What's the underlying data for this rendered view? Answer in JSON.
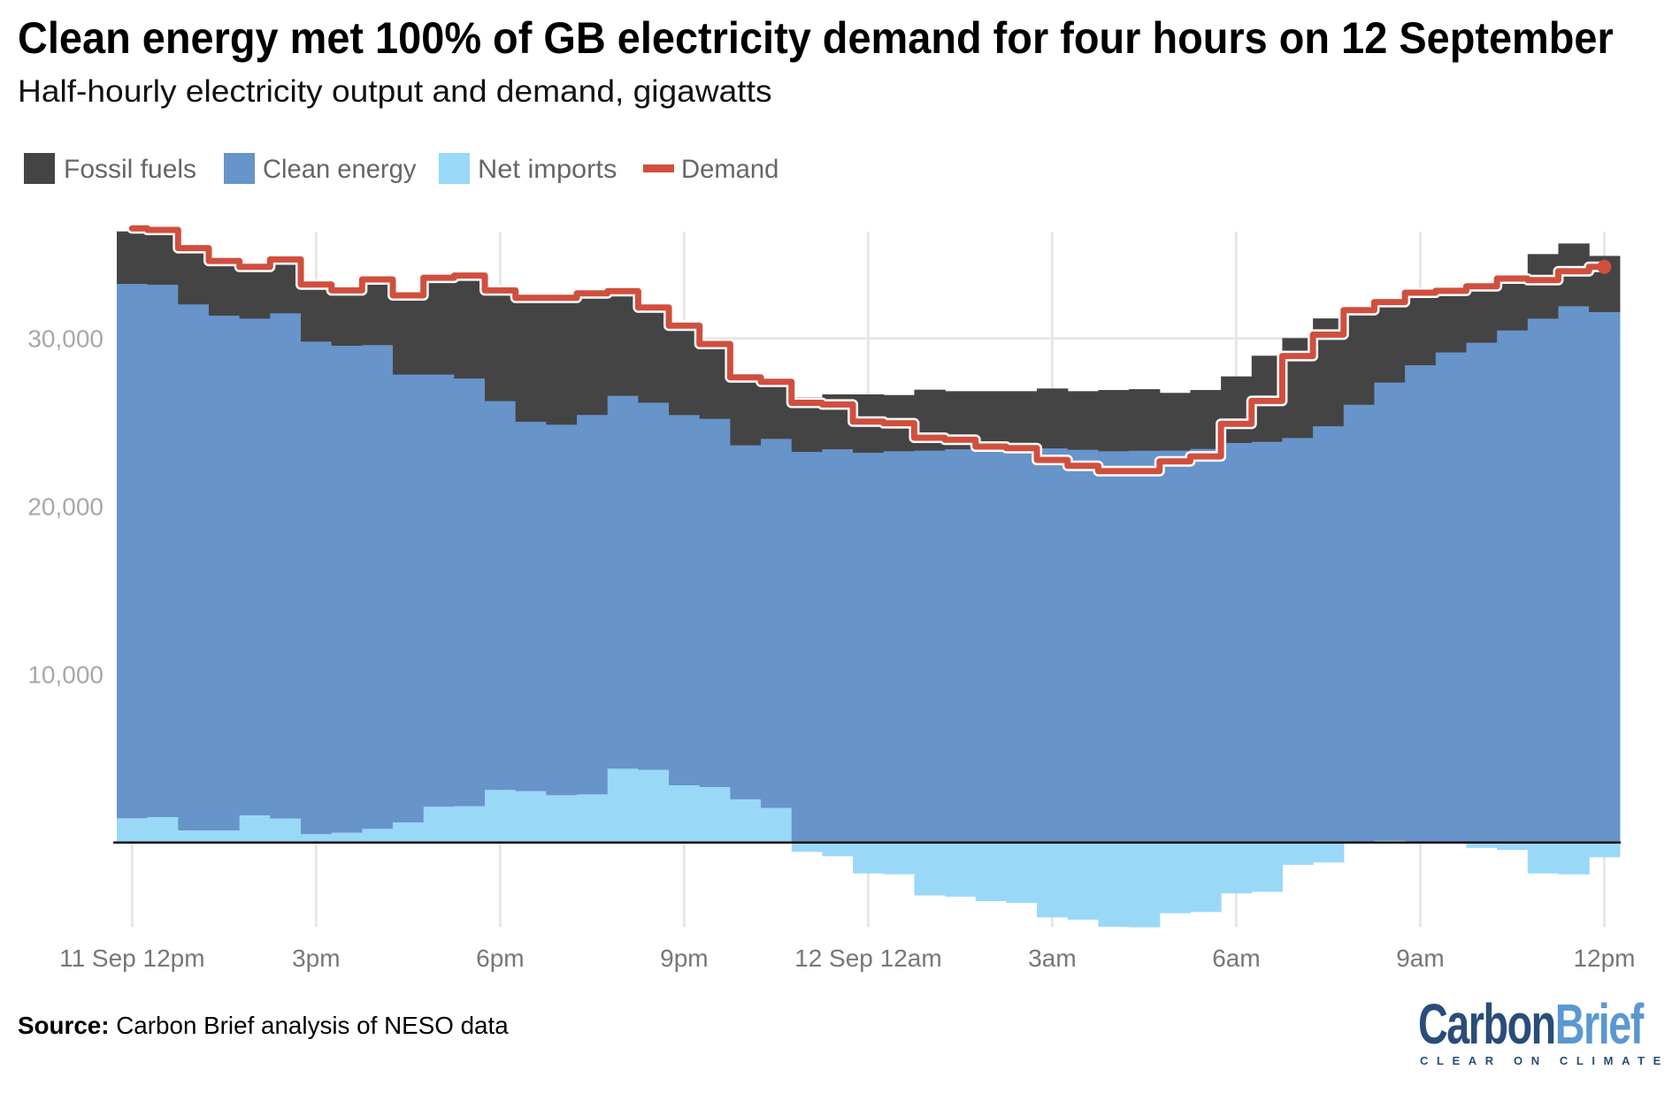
{
  "title": "Clean energy met 100% of GB electricity demand for four hours on 12 September",
  "subtitle": "Half-hourly electricity output and demand, gigawatts",
  "legend": [
    {
      "label": "Fossil fuels",
      "color": "#444444",
      "kind": "area"
    },
    {
      "label": "Clean energy",
      "color": "#6794c9",
      "kind": "area"
    },
    {
      "label": "Net imports",
      "color": "#9ad8f8",
      "kind": "area"
    },
    {
      "label": "Demand",
      "color": "#d04f3e",
      "kind": "line"
    }
  ],
  "source": {
    "prefix": "Source:",
    "text": " Carbon Brief analysis of NESO data"
  },
  "logo": {
    "word1": "Carbon",
    "word2": "Brief",
    "tagline": "CLEAR ON CLIMATE"
  },
  "chart_data": {
    "type": "area",
    "subtype": "stacked step area with step line",
    "title": "Clean energy met 100% of GB electricity demand for four hours on 12 September",
    "subtitle": "Half-hourly electricity output and demand, gigawatts",
    "xlabel": "",
    "ylabel": "",
    "ylim": [
      -5500,
      37500
    ],
    "yticks": [
      10000,
      20000,
      30000
    ],
    "ytick_labels": [
      "10,000",
      "20,000",
      "30,000"
    ],
    "xticks": [
      {
        "index": 0,
        "label": "11 Sep 12pm"
      },
      {
        "index": 6,
        "label": "3pm"
      },
      {
        "index": 12,
        "label": "6pm"
      },
      {
        "index": 18,
        "label": "9pm"
      },
      {
        "index": 24,
        "label": "12 Sep 12am"
      },
      {
        "index": 30,
        "label": "3am"
      },
      {
        "index": 36,
        "label": "6am"
      },
      {
        "index": 42,
        "label": "9am"
      },
      {
        "index": 48,
        "label": "12pm"
      }
    ],
    "grid": true,
    "legend_position": "top-left",
    "x": [
      "11 Sep 12:00",
      "12:30",
      "13:00",
      "13:30",
      "14:00",
      "14:30",
      "15:00",
      "15:30",
      "16:00",
      "16:30",
      "17:00",
      "17:30",
      "18:00",
      "18:30",
      "19:00",
      "19:30",
      "20:00",
      "20:30",
      "21:00",
      "21:30",
      "22:00",
      "22:30",
      "23:00",
      "23:30",
      "12 Sep 00:00",
      "00:30",
      "01:00",
      "01:30",
      "02:00",
      "02:30",
      "03:00",
      "03:30",
      "04:00",
      "04:30",
      "05:00",
      "05:30",
      "06:00",
      "06:30",
      "07:00",
      "07:30",
      "08:00",
      "08:30",
      "09:00",
      "09:30",
      "10:00",
      "10:30",
      "11:00",
      "11:30",
      "12:00"
    ],
    "series": [
      {
        "name": "Net imports",
        "kind": "area",
        "values": [
          1440,
          1510,
          720,
          720,
          1615,
          1420,
          495,
          580,
          810,
          1195,
          2125,
          2160,
          3125,
          3055,
          2810,
          2860,
          4390,
          4320,
          3405,
          3300,
          2565,
          2055,
          -560,
          -820,
          -1840,
          -1890,
          -3150,
          -3225,
          -3490,
          -3595,
          -4455,
          -4595,
          -5015,
          -5050,
          -4210,
          -4140,
          -3030,
          -2940,
          -1330,
          -1190,
          0,
          100,
          0,
          0,
          -320,
          -440,
          -1840,
          -1895,
          -880
        ]
      },
      {
        "name": "Clean energy",
        "kind": "area",
        "values": [
          31820,
          31700,
          31320,
          30650,
          29580,
          30090,
          29330,
          29000,
          28810,
          26670,
          25740,
          25470,
          23160,
          22000,
          22070,
          22600,
          22210,
          21870,
          22050,
          21930,
          21090,
          21980,
          23260,
          23420,
          23210,
          23300,
          23340,
          23420,
          23510,
          23510,
          23470,
          23390,
          23300,
          23330,
          23340,
          23440,
          23790,
          23860,
          24090,
          24790,
          26070,
          27290,
          28420,
          29180,
          29760,
          30490,
          31190,
          31930,
          31580
        ]
      },
      {
        "name": "Fossil fuels",
        "kind": "area",
        "values": [
          3110,
          3070,
          3100,
          3020,
          2850,
          2880,
          3210,
          3100,
          3680,
          4560,
          5490,
          5840,
          6320,
          7200,
          7330,
          6960,
          5910,
          5390,
          5030,
          4170,
          3770,
          3120,
          3240,
          3250,
          3460,
          3330,
          3610,
          3440,
          3350,
          3350,
          3550,
          3470,
          3630,
          3650,
          3420,
          3490,
          3950,
          5110,
          5930,
          6400,
          5650,
          4770,
          4250,
          3590,
          3280,
          3280,
          3830,
          3720,
          3330
        ]
      },
      {
        "name": "Demand",
        "kind": "line",
        "values": [
          36550,
          36460,
          35370,
          34610,
          34260,
          34700,
          33210,
          32860,
          33510,
          32560,
          33610,
          33740,
          32860,
          32420,
          32420,
          32680,
          32810,
          31840,
          30760,
          29670,
          27680,
          27420,
          26170,
          26070,
          25050,
          24950,
          24090,
          23970,
          23560,
          23470,
          22770,
          22420,
          22100,
          22100,
          22680,
          22980,
          24920,
          26280,
          28950,
          30230,
          31680,
          32160,
          32720,
          32830,
          33100,
          33560,
          33470,
          34000,
          34260
        ]
      }
    ]
  }
}
